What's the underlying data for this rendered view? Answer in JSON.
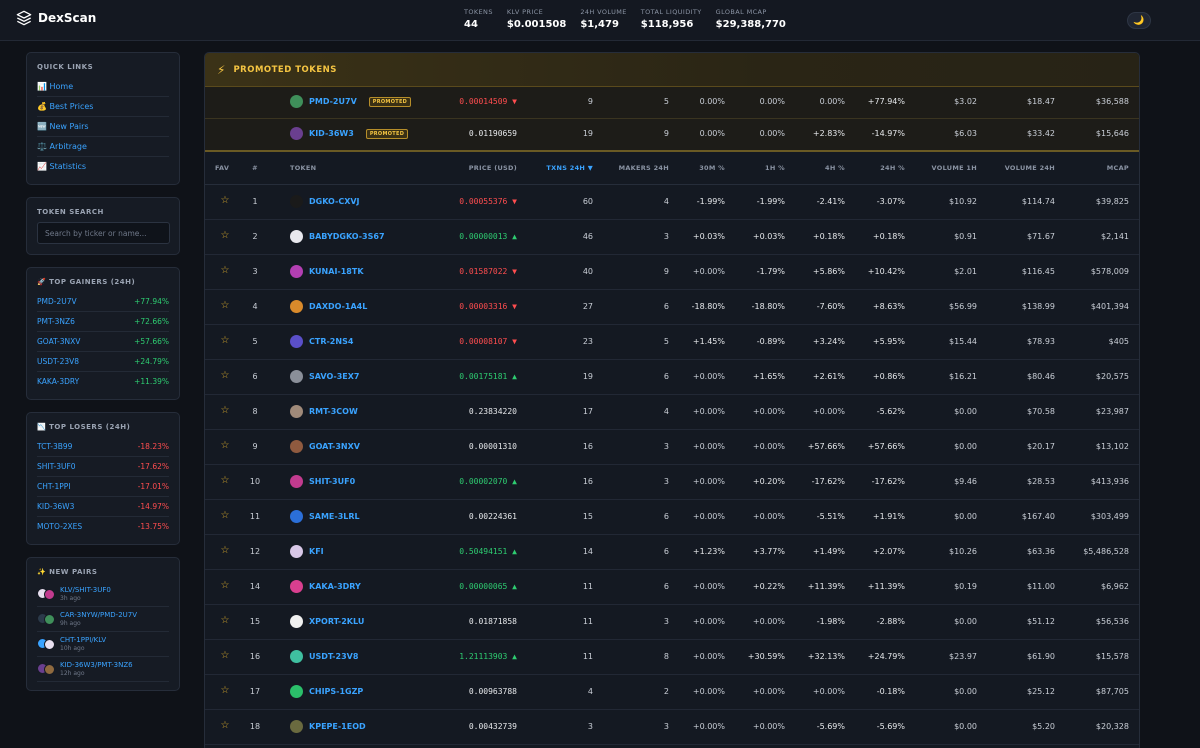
{
  "app": {
    "name": "DexScan"
  },
  "stats": [
    {
      "label": "TOKENS",
      "value": "44"
    },
    {
      "label": "KLV PRICE",
      "value": "$0.001508"
    },
    {
      "label": "24H VOLUME",
      "value": "$1,479"
    },
    {
      "label": "TOTAL LIQUIDITY",
      "value": "$118,956"
    },
    {
      "label": "GLOBAL MCAP",
      "value": "$29,388,770"
    }
  ],
  "theme_toggle": {
    "icon": "moon-icon",
    "glyph": "🌙"
  },
  "sidebar": {
    "quick_links": {
      "title": "QUICK LINKS",
      "items": [
        {
          "label": "📊 Home"
        },
        {
          "label": "💰 Best Prices"
        },
        {
          "label": "🆕 New Pairs"
        },
        {
          "label": "⚖️ Arbitrage"
        },
        {
          "label": "📈 Statistics"
        }
      ]
    },
    "token_search": {
      "title": "TOKEN SEARCH",
      "placeholder": "Search by ticker or name..."
    },
    "top_gainers": {
      "title": "🚀 TOP GAINERS (24H)",
      "items": [
        {
          "name": "PMD-2U7V",
          "change": "+77.94%"
        },
        {
          "name": "PMT-3NZ6",
          "change": "+72.66%"
        },
        {
          "name": "GOAT-3NXV",
          "change": "+57.66%"
        },
        {
          "name": "USDT-23V8",
          "change": "+24.79%"
        },
        {
          "name": "KAKA-3DRY",
          "change": "+11.39%"
        }
      ]
    },
    "top_losers": {
      "title": "📉 TOP LOSERS (24H)",
      "items": [
        {
          "name": "TCT-3B99",
          "change": "-18.23%"
        },
        {
          "name": "SHIT-3UF0",
          "change": "-17.62%"
        },
        {
          "name": "CHT-1PPI",
          "change": "-17.01%"
        },
        {
          "name": "KID-36W3",
          "change": "-14.97%"
        },
        {
          "name": "MOTO-2XES",
          "change": "-13.75%"
        }
      ]
    },
    "new_pairs": {
      "title": "✨ NEW PAIRS",
      "items": [
        {
          "pair": "KLV/SHIT-3UF0",
          "time": "3h ago",
          "c1": "#e8e0f0",
          "c2": "#c23b8f"
        },
        {
          "pair": "CAR-3NYW/PMD-2U7V",
          "time": "9h ago",
          "c1": "#2b3a4a",
          "c2": "#3f8f5a"
        },
        {
          "pair": "CHT-1PPI/KLV",
          "time": "10h ago",
          "c1": "#3aa3ff",
          "c2": "#e8e0f0"
        },
        {
          "pair": "KID-36W3/PMT-3NZ6",
          "time": "12h ago",
          "c1": "#6a3f8f",
          "c2": "#8f6a3f"
        }
      ]
    }
  },
  "promoted": {
    "title": "PROMOTED TOKENS",
    "badge": "PROMOTED",
    "rows": [
      {
        "token": "PMD-2U7V",
        "logo": "#3f8f5a",
        "price": "0.00014509 ▼",
        "dir": "down",
        "txns": "9",
        "makers": "5",
        "m30": "0.00%",
        "h1": "0.00%",
        "h4": "0.00%",
        "h4c": "flat",
        "h24": "+77.94%",
        "h24c": "pos",
        "vol1h": "$3.02",
        "vol24": "$18.47",
        "mcap": "$36,588"
      },
      {
        "token": "KID-36W3",
        "logo": "#6a3f8f",
        "price": "0.01190659",
        "dir": "flat",
        "txns": "19",
        "makers": "9",
        "m30": "0.00%",
        "h1": "0.00%",
        "h4": "+2.83%",
        "h4c": "pos",
        "h24": "-14.97%",
        "h24c": "neg",
        "vol1h": "$6.03",
        "vol24": "$33.42",
        "mcap": "$15,646"
      }
    ]
  },
  "table": {
    "headers": {
      "fav": "FAV",
      "rank": "#",
      "token": "TOKEN",
      "price": "PRICE (USD)",
      "txns": "TXNS 24H ▼",
      "makers": "MAKERS 24H",
      "m30": "30M %",
      "h1": "1H %",
      "h4": "4H %",
      "h24": "24H %",
      "vol1h": "VOLUME 1H",
      "vol24": "VOLUME 24H",
      "mcap": "MCAP"
    },
    "rows": [
      {
        "rank": "1",
        "token": "DGKO-CXVJ",
        "logo": "#1a1a1a",
        "price": "0.00055376 ▼",
        "dir": "down",
        "txns": "60",
        "makers": "4",
        "m30": "-1.99%",
        "m30c": "neg",
        "h1": "-1.99%",
        "h1c": "neg",
        "h4": "-2.41%",
        "h4c": "neg",
        "h24": "-3.07%",
        "h24c": "neg",
        "vol1h": "$10.92",
        "vol24": "$114.74",
        "mcap": "$39,825"
      },
      {
        "rank": "2",
        "token": "BABYDGKO-3S67",
        "logo": "#e8e8ee",
        "price": "0.00000013 ▲",
        "dir": "up",
        "txns": "46",
        "makers": "3",
        "m30": "+0.03%",
        "m30c": "pos",
        "h1": "+0.03%",
        "h1c": "pos",
        "h4": "+0.18%",
        "h4c": "pos",
        "h24": "+0.18%",
        "h24c": "pos",
        "vol1h": "$0.91",
        "vol24": "$71.67",
        "mcap": "$2,141"
      },
      {
        "rank": "3",
        "token": "KUNAI-18TK",
        "logo": "#b33fb3",
        "price": "0.01587022 ▼",
        "dir": "down",
        "txns": "40",
        "makers": "9",
        "m30": "+0.00%",
        "m30c": "dim",
        "h1": "-1.79%",
        "h1c": "neg",
        "h4": "+5.86%",
        "h4c": "pos",
        "h24": "+10.42%",
        "h24c": "pos",
        "vol1h": "$2.01",
        "vol24": "$116.45",
        "mcap": "$578,009"
      },
      {
        "rank": "4",
        "token": "DAXDO-1A4L",
        "logo": "#d98a2b",
        "price": "0.00003316 ▼",
        "dir": "down",
        "txns": "27",
        "makers": "6",
        "m30": "-18.80%",
        "m30c": "neg",
        "h1": "-18.80%",
        "h1c": "neg",
        "h4": "-7.60%",
        "h4c": "neg",
        "h24": "+8.63%",
        "h24c": "pos",
        "vol1h": "$56.99",
        "vol24": "$138.99",
        "mcap": "$401,394"
      },
      {
        "rank": "5",
        "token": "CTR-2NS4",
        "logo": "#5a4fc9",
        "price": "0.00008107 ▼",
        "dir": "down",
        "txns": "23",
        "makers": "5",
        "m30": "+1.45%",
        "m30c": "pos",
        "h1": "-0.89%",
        "h1c": "neg",
        "h4": "+3.24%",
        "h4c": "pos",
        "h24": "+5.95%",
        "h24c": "pos",
        "vol1h": "$15.44",
        "vol24": "$78.93",
        "mcap": "$405"
      },
      {
        "rank": "6",
        "token": "SAVO-3EX7",
        "logo": "#8a8f99",
        "price": "0.00175181 ▲",
        "dir": "up",
        "txns": "19",
        "makers": "6",
        "m30": "+0.00%",
        "m30c": "dim",
        "h1": "+1.65%",
        "h1c": "pos",
        "h4": "+2.61%",
        "h4c": "pos",
        "h24": "+0.86%",
        "h24c": "pos",
        "vol1h": "$16.21",
        "vol24": "$80.46",
        "mcap": "$20,575"
      },
      {
        "rank": "8",
        "token": "RMT-3COW",
        "logo": "#a08a7a",
        "price": "0.23834220",
        "dir": "flat",
        "txns": "17",
        "makers": "4",
        "m30": "+0.00%",
        "m30c": "dim",
        "h1": "+0.00%",
        "h1c": "dim",
        "h4": "+0.00%",
        "h4c": "dim",
        "h24": "-5.62%",
        "h24c": "neg",
        "vol1h": "$0.00",
        "vol24": "$70.58",
        "mcap": "$23,987"
      },
      {
        "rank": "9",
        "token": "GOAT-3NXV",
        "logo": "#8f5a3f",
        "price": "0.00001310",
        "dir": "flat",
        "txns": "16",
        "makers": "3",
        "m30": "+0.00%",
        "m30c": "dim",
        "h1": "+0.00%",
        "h1c": "dim",
        "h4": "+57.66%",
        "h4c": "pos",
        "h24": "+57.66%",
        "h24c": "pos",
        "vol1h": "$0.00",
        "vol24": "$20.17",
        "mcap": "$13,102"
      },
      {
        "rank": "10",
        "token": "SHIT-3UF0",
        "logo": "#c23b8f",
        "price": "0.00002070 ▲",
        "dir": "up",
        "txns": "16",
        "makers": "3",
        "m30": "+0.00%",
        "m30c": "dim",
        "h1": "+0.20%",
        "h1c": "pos",
        "h4": "-17.62%",
        "h4c": "neg",
        "h24": "-17.62%",
        "h24c": "neg",
        "vol1h": "$9.46",
        "vol24": "$28.53",
        "mcap": "$413,936"
      },
      {
        "rank": "11",
        "token": "SAME-3LRL",
        "logo": "#2b6fd9",
        "price": "0.00224361",
        "dir": "flat",
        "txns": "15",
        "makers": "6",
        "m30": "+0.00%",
        "m30c": "dim",
        "h1": "+0.00%",
        "h1c": "dim",
        "h4": "-5.51%",
        "h4c": "neg",
        "h24": "+1.91%",
        "h24c": "pos",
        "vol1h": "$0.00",
        "vol24": "$167.40",
        "mcap": "$303,499"
      },
      {
        "rank": "12",
        "token": "KFI",
        "logo": "#d8c8e8",
        "price": "0.50494151 ▲",
        "dir": "up",
        "txns": "14",
        "makers": "6",
        "m30": "+1.23%",
        "m30c": "pos",
        "h1": "+3.77%",
        "h1c": "pos",
        "h4": "+1.49%",
        "h4c": "pos",
        "h24": "+2.07%",
        "h24c": "pos",
        "vol1h": "$10.26",
        "vol24": "$63.36",
        "mcap": "$5,486,528"
      },
      {
        "rank": "14",
        "token": "KAKA-3DRY",
        "logo": "#d93f8f",
        "price": "0.00000065 ▲",
        "dir": "up",
        "txns": "11",
        "makers": "6",
        "m30": "+0.00%",
        "m30c": "dim",
        "h1": "+0.22%",
        "h1c": "pos",
        "h4": "+11.39%",
        "h4c": "pos",
        "h24": "+11.39%",
        "h24c": "pos",
        "vol1h": "$0.19",
        "vol24": "$11.00",
        "mcap": "$6,962"
      },
      {
        "rank": "15",
        "token": "XPORT-2KLU",
        "logo": "#f0f0f0",
        "price": "0.01871858",
        "dir": "flat",
        "txns": "11",
        "makers": "3",
        "m30": "+0.00%",
        "m30c": "dim",
        "h1": "+0.00%",
        "h1c": "dim",
        "h4": "-1.98%",
        "h4c": "neg",
        "h24": "-2.88%",
        "h24c": "neg",
        "vol1h": "$0.00",
        "vol24": "$51.12",
        "mcap": "$56,536"
      },
      {
        "rank": "16",
        "token": "USDT-23V8",
        "logo": "#3fbfa0",
        "price": "1.21113903 ▲",
        "dir": "up",
        "txns": "11",
        "makers": "8",
        "m30": "+0.00%",
        "m30c": "dim",
        "h1": "+30.59%",
        "h1c": "pos",
        "h4": "+32.13%",
        "h4c": "pos",
        "h24": "+24.79%",
        "h24c": "pos",
        "vol1h": "$23.97",
        "vol24": "$61.90",
        "mcap": "$15,578"
      },
      {
        "rank": "17",
        "token": "CHIPS-1GZP",
        "logo": "#2bbf6a",
        "price": "0.00963788",
        "dir": "flat",
        "txns": "4",
        "makers": "2",
        "m30": "+0.00%",
        "m30c": "dim",
        "h1": "+0.00%",
        "h1c": "dim",
        "h4": "+0.00%",
        "h4c": "dim",
        "h24": "-0.18%",
        "h24c": "neg",
        "vol1h": "$0.00",
        "vol24": "$25.12",
        "mcap": "$87,705"
      },
      {
        "rank": "18",
        "token": "KPEPE-1EOD",
        "logo": "#6a6a3f",
        "price": "0.00432739",
        "dir": "flat",
        "txns": "3",
        "makers": "3",
        "m30": "+0.00%",
        "m30c": "dim",
        "h1": "+0.00%",
        "h1c": "dim",
        "h4": "-5.69%",
        "h4c": "neg",
        "h24": "-5.69%",
        "h24c": "neg",
        "vol1h": "$0.00",
        "vol24": "$5.20",
        "mcap": "$20,328"
      }
    ]
  }
}
